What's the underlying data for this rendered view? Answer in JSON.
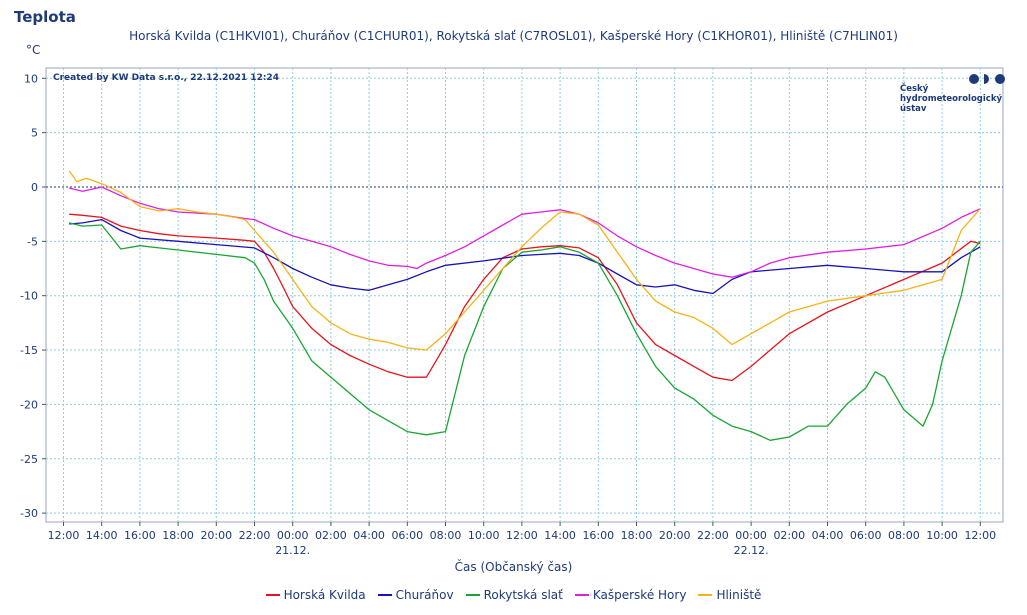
{
  "title": "Teplota",
  "subtitle": "Horská Kvilda (C1HKVI01), Churáňov (C1CHUR01), Rokytská slať (C7ROSL01), Kašperské Hory (C1KHOR01), Hliniště (C7HLIN01)",
  "unit": "°C",
  "credit": "Created by KW Data s.r.o., 22.12.2021 12:24",
  "logo": {
    "text": "Český\nhydrometeorologický\nústav",
    "color": "#1e3a78"
  },
  "chart_data": {
    "type": "line",
    "xlabel": "Čas (Občanský čas)",
    "x_unit": "hours since 20.12. 12:00",
    "xlim": [
      0,
      48
    ],
    "x_ticks": [
      {
        "x": 0,
        "label": "12:00"
      },
      {
        "x": 2,
        "label": "14:00"
      },
      {
        "x": 4,
        "label": "16:00"
      },
      {
        "x": 6,
        "label": "18:00"
      },
      {
        "x": 8,
        "label": "20:00"
      },
      {
        "x": 10,
        "label": "22:00"
      },
      {
        "x": 12,
        "label": "00:00"
      },
      {
        "x": 14,
        "label": "02:00"
      },
      {
        "x": 16,
        "label": "04:00"
      },
      {
        "x": 18,
        "label": "06:00"
      },
      {
        "x": 20,
        "label": "08:00"
      },
      {
        "x": 22,
        "label": "10:00"
      },
      {
        "x": 24,
        "label": "12:00"
      },
      {
        "x": 26,
        "label": "14:00"
      },
      {
        "x": 28,
        "label": "16:00"
      },
      {
        "x": 30,
        "label": "18:00"
      },
      {
        "x": 32,
        "label": "20:00"
      },
      {
        "x": 34,
        "label": "22:00"
      },
      {
        "x": 36,
        "label": "00:00"
      },
      {
        "x": 38,
        "label": "02:00"
      },
      {
        "x": 40,
        "label": "04:00"
      },
      {
        "x": 42,
        "label": "06:00"
      },
      {
        "x": 44,
        "label": "08:00"
      },
      {
        "x": 46,
        "label": "10:00"
      },
      {
        "x": 48,
        "label": "12:00"
      }
    ],
    "date_labels": [
      {
        "x": 12,
        "label": "21.12."
      },
      {
        "x": 36,
        "label": "22.12."
      }
    ],
    "ylim": [
      -31,
      11
    ],
    "y_ticks": [
      10,
      5,
      0,
      -5,
      -10,
      -15,
      -20,
      -25,
      -30
    ],
    "zero_line": true,
    "grid": true,
    "legend_position": "bottom",
    "series": [
      {
        "name": "Horská Kvilda",
        "color": "#e8141c",
        "points": [
          [
            0.3,
            -2.5
          ],
          [
            1,
            -2.6
          ],
          [
            2,
            -2.8
          ],
          [
            3,
            -3.6
          ],
          [
            4,
            -4.0
          ],
          [
            5,
            -4.3
          ],
          [
            6,
            -4.5
          ],
          [
            8,
            -4.7
          ],
          [
            9.5,
            -4.9
          ],
          [
            10,
            -5.0
          ],
          [
            10.5,
            -6.0
          ],
          [
            11,
            -7.5
          ],
          [
            11.5,
            -9.2
          ],
          [
            12,
            -11.0
          ],
          [
            13,
            -13.0
          ],
          [
            14,
            -14.5
          ],
          [
            15,
            -15.5
          ],
          [
            16,
            -16.3
          ],
          [
            17,
            -17.0
          ],
          [
            18,
            -17.5
          ],
          [
            19,
            -17.5
          ],
          [
            19.5,
            -16.0
          ],
          [
            20,
            -14.5
          ],
          [
            21,
            -11.0
          ],
          [
            22,
            -8.5
          ],
          [
            23,
            -6.5
          ],
          [
            24,
            -5.7
          ],
          [
            25,
            -5.5
          ],
          [
            26,
            -5.4
          ],
          [
            27,
            -5.6
          ],
          [
            28,
            -6.5
          ],
          [
            29,
            -9.0
          ],
          [
            30,
            -12.5
          ],
          [
            31,
            -14.5
          ],
          [
            32,
            -15.5
          ],
          [
            33,
            -16.5
          ],
          [
            34,
            -17.5
          ],
          [
            35,
            -17.8
          ],
          [
            36,
            -16.5
          ],
          [
            37,
            -15.0
          ],
          [
            38,
            -13.5
          ],
          [
            40,
            -11.5
          ],
          [
            42,
            -10.0
          ],
          [
            44,
            -8.5
          ],
          [
            46,
            -7.0
          ],
          [
            47.5,
            -5.0
          ],
          [
            48,
            -5.2
          ]
        ]
      },
      {
        "name": "Churáňov",
        "color": "#1a12b8",
        "points": [
          [
            0.3,
            -3.4
          ],
          [
            1,
            -3.3
          ],
          [
            2,
            -3.0
          ],
          [
            3,
            -4.0
          ],
          [
            4,
            -4.7
          ],
          [
            6,
            -5.0
          ],
          [
            8,
            -5.3
          ],
          [
            10,
            -5.6
          ],
          [
            11,
            -6.5
          ],
          [
            12,
            -7.5
          ],
          [
            13,
            -8.3
          ],
          [
            14,
            -9.0
          ],
          [
            15,
            -9.3
          ],
          [
            16,
            -9.5
          ],
          [
            17,
            -9.0
          ],
          [
            18,
            -8.5
          ],
          [
            19,
            -7.8
          ],
          [
            20,
            -7.2
          ],
          [
            22,
            -6.8
          ],
          [
            24,
            -6.3
          ],
          [
            26,
            -6.1
          ],
          [
            27,
            -6.3
          ],
          [
            28,
            -7.0
          ],
          [
            29,
            -8.0
          ],
          [
            30,
            -9.0
          ],
          [
            31,
            -9.2
          ],
          [
            32,
            -9.0
          ],
          [
            33,
            -9.5
          ],
          [
            34,
            -9.8
          ],
          [
            35,
            -8.5
          ],
          [
            36,
            -7.8
          ],
          [
            38,
            -7.5
          ],
          [
            40,
            -7.2
          ],
          [
            42,
            -7.5
          ],
          [
            44,
            -7.8
          ],
          [
            46,
            -7.8
          ],
          [
            47,
            -6.5
          ],
          [
            48,
            -5.5
          ]
        ]
      },
      {
        "name": "Rokytská slať",
        "color": "#1aa533",
        "points": [
          [
            0.3,
            -3.3
          ],
          [
            1,
            -3.6
          ],
          [
            2,
            -3.5
          ],
          [
            3,
            -5.7
          ],
          [
            4,
            -5.4
          ],
          [
            5,
            -5.6
          ],
          [
            6,
            -5.8
          ],
          [
            8,
            -6.2
          ],
          [
            9.5,
            -6.5
          ],
          [
            10,
            -7.0
          ],
          [
            10.5,
            -8.5
          ],
          [
            11,
            -10.5
          ],
          [
            12,
            -13.0
          ],
          [
            13,
            -16.0
          ],
          [
            14,
            -17.5
          ],
          [
            15,
            -19.0
          ],
          [
            16,
            -20.5
          ],
          [
            17,
            -21.5
          ],
          [
            18,
            -22.5
          ],
          [
            19,
            -22.8
          ],
          [
            20,
            -22.5
          ],
          [
            20.5,
            -19.0
          ],
          [
            21,
            -15.5
          ],
          [
            22,
            -11.0
          ],
          [
            23,
            -7.5
          ],
          [
            24,
            -6.0
          ],
          [
            25,
            -5.8
          ],
          [
            26,
            -5.5
          ],
          [
            27,
            -6.0
          ],
          [
            28,
            -7.0
          ],
          [
            29,
            -10.0
          ],
          [
            30,
            -13.5
          ],
          [
            31,
            -16.5
          ],
          [
            32,
            -18.5
          ],
          [
            33,
            -19.5
          ],
          [
            34,
            -21.0
          ],
          [
            35,
            -22.0
          ],
          [
            36,
            -22.5
          ],
          [
            37,
            -23.3
          ],
          [
            38,
            -23.0
          ],
          [
            39,
            -22.0
          ],
          [
            40,
            -22.0
          ],
          [
            41,
            -20.0
          ],
          [
            42,
            -18.5
          ],
          [
            42.5,
            -17.0
          ],
          [
            43,
            -17.5
          ],
          [
            44,
            -20.5
          ],
          [
            45,
            -22.0
          ],
          [
            45.5,
            -20.0
          ],
          [
            46,
            -16.0
          ],
          [
            47,
            -10.0
          ],
          [
            47.5,
            -6.0
          ],
          [
            48,
            -5.0
          ]
        ]
      },
      {
        "name": "Kašperské Hory",
        "color": "#e01fe0",
        "points": [
          [
            0.3,
            -0.1
          ],
          [
            1,
            -0.4
          ],
          [
            2,
            0.0
          ],
          [
            3,
            -0.8
          ],
          [
            4,
            -1.5
          ],
          [
            5,
            -2.0
          ],
          [
            6,
            -2.3
          ],
          [
            8,
            -2.5
          ],
          [
            9.5,
            -2.9
          ],
          [
            10,
            -3.0
          ],
          [
            11,
            -3.8
          ],
          [
            12,
            -4.5
          ],
          [
            13,
            -5.0
          ],
          [
            14,
            -5.5
          ],
          [
            15,
            -6.2
          ],
          [
            16,
            -6.8
          ],
          [
            17,
            -7.2
          ],
          [
            18,
            -7.3
          ],
          [
            18.5,
            -7.5
          ],
          [
            19,
            -7.0
          ],
          [
            20,
            -6.3
          ],
          [
            21,
            -5.5
          ],
          [
            22,
            -4.5
          ],
          [
            23,
            -3.5
          ],
          [
            24,
            -2.5
          ],
          [
            25,
            -2.3
          ],
          [
            26,
            -2.1
          ],
          [
            27,
            -2.5
          ],
          [
            28,
            -3.3
          ],
          [
            29,
            -4.5
          ],
          [
            30,
            -5.5
          ],
          [
            31,
            -6.3
          ],
          [
            32,
            -7.0
          ],
          [
            33,
            -7.5
          ],
          [
            34,
            -8.0
          ],
          [
            35,
            -8.3
          ],
          [
            36,
            -7.8
          ],
          [
            37,
            -7.0
          ],
          [
            38,
            -6.5
          ],
          [
            40,
            -6.0
          ],
          [
            42,
            -5.7
          ],
          [
            44,
            -5.3
          ],
          [
            46,
            -3.8
          ],
          [
            47,
            -2.8
          ],
          [
            48,
            -2.0
          ]
        ]
      },
      {
        "name": "Hliniště",
        "color": "#f5b316",
        "points": [
          [
            0.3,
            1.5
          ],
          [
            0.7,
            0.5
          ],
          [
            1.2,
            0.8
          ],
          [
            2,
            0.3
          ],
          [
            3,
            -0.5
          ],
          [
            4,
            -1.8
          ],
          [
            5,
            -2.2
          ],
          [
            6,
            -2.0
          ],
          [
            7,
            -2.3
          ],
          [
            8,
            -2.5
          ],
          [
            9,
            -2.8
          ],
          [
            9.5,
            -3.0
          ],
          [
            10,
            -4.0
          ],
          [
            11,
            -6.0
          ],
          [
            12,
            -8.5
          ],
          [
            13,
            -11.0
          ],
          [
            14,
            -12.5
          ],
          [
            15,
            -13.5
          ],
          [
            16,
            -14.0
          ],
          [
            17,
            -14.3
          ],
          [
            18,
            -14.8
          ],
          [
            19,
            -15.0
          ],
          [
            20,
            -13.5
          ],
          [
            21,
            -11.5
          ],
          [
            22,
            -9.5
          ],
          [
            23,
            -7.5
          ],
          [
            24,
            -5.5
          ],
          [
            25,
            -3.8
          ],
          [
            26,
            -2.3
          ],
          [
            27,
            -2.5
          ],
          [
            28,
            -3.5
          ],
          [
            29,
            -6.0
          ],
          [
            30,
            -8.5
          ],
          [
            31,
            -10.5
          ],
          [
            32,
            -11.5
          ],
          [
            33,
            -12.0
          ],
          [
            34,
            -13.0
          ],
          [
            35,
            -14.5
          ],
          [
            36,
            -13.5
          ],
          [
            37,
            -12.5
          ],
          [
            38,
            -11.5
          ],
          [
            40,
            -10.5
          ],
          [
            42,
            -10.0
          ],
          [
            44,
            -9.5
          ],
          [
            46,
            -8.5
          ],
          [
            47,
            -4.0
          ],
          [
            48,
            -2.0
          ]
        ]
      }
    ]
  }
}
